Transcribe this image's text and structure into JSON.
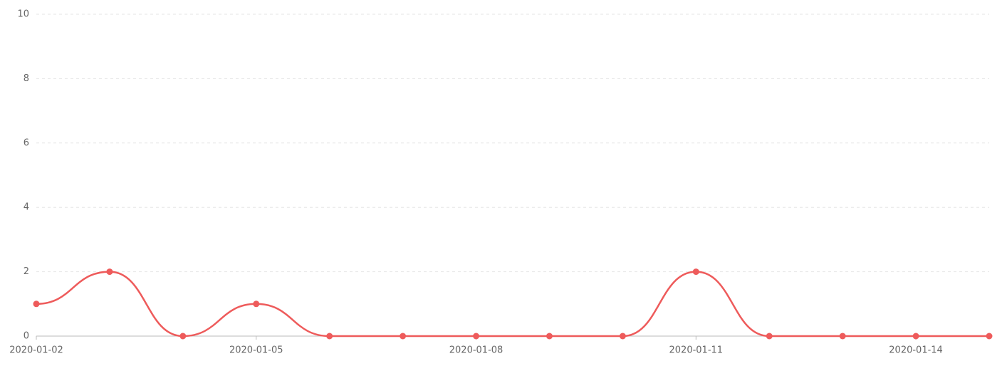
{
  "chart_data": {
    "type": "line",
    "categories": [
      "2020-01-02",
      null,
      null,
      "2020-01-05",
      null,
      null,
      "2020-01-08",
      null,
      null,
      "2020-01-11",
      null,
      null,
      "2020-01-14",
      null
    ],
    "series": [
      {
        "color": "#ee5b5b",
        "values": [
          1,
          2,
          0,
          1,
          0,
          0,
          0,
          0,
          0,
          2,
          0,
          0,
          0,
          0
        ]
      }
    ],
    "ylim": [
      0,
      10
    ],
    "yticks": [
      0,
      2,
      4,
      6,
      8,
      10
    ],
    "grid": true,
    "smooth": true
  }
}
